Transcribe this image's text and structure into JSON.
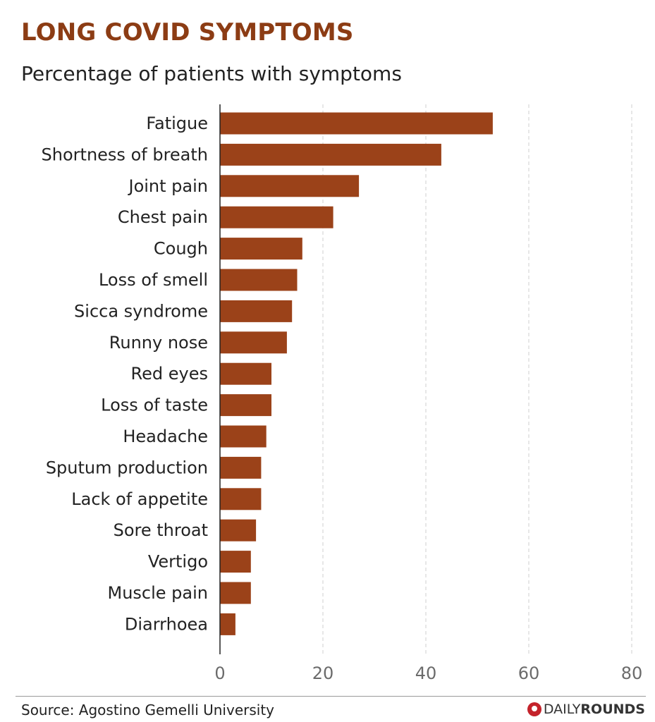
{
  "title": "LONG COVID SYMPTOMS",
  "subtitle": "Percentage of patients with symptoms",
  "colors": {
    "bar": "#9b4219",
    "title": "#8c3c14",
    "grid": "#cfcfcf",
    "axis": "#222222"
  },
  "chart_data": {
    "type": "bar",
    "orientation": "horizontal",
    "title": "LONG COVID SYMPTOMS",
    "subtitle": "Percentage of patients with symptoms",
    "categories": [
      "Fatigue",
      "Shortness of breath",
      "Joint pain",
      "Chest pain",
      "Cough",
      "Loss of smell",
      "Sicca syndrome",
      "Runny nose",
      "Red eyes",
      "Loss of taste",
      "Headache",
      "Sputum production",
      "Lack of appetite",
      "Sore throat",
      "Vertigo",
      "Muscle pain",
      "Diarrhoea"
    ],
    "values": [
      53,
      43,
      27,
      22,
      16,
      15,
      14,
      13,
      10,
      10,
      9,
      8,
      8,
      7,
      6,
      6,
      3
    ],
    "xlim": [
      0,
      80
    ],
    "xticks": [
      0,
      20,
      40,
      60,
      80
    ],
    "xlabel": "",
    "ylabel": "",
    "grid": "vertical dashed",
    "legend": "none"
  },
  "footer": {
    "source": "Source: Agostino Gemelli University",
    "brand_light": "DAILY",
    "brand_bold": "ROUNDS",
    "brand_icon": "dailyrounds-logo-icon"
  }
}
